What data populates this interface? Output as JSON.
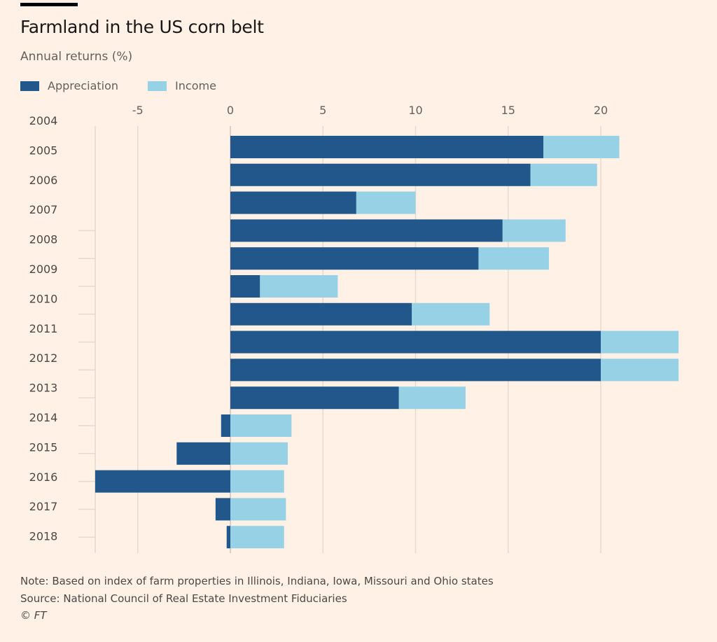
{
  "chart_data": {
    "type": "bar",
    "orientation": "horizontal",
    "stacked": true,
    "title": "Farmland in the US corn belt",
    "subtitle": "Annual returns (%)",
    "categories": [
      "2004",
      "2005",
      "2006",
      "2007",
      "2008",
      "2009",
      "2010",
      "2011",
      "2012",
      "2013",
      "2014",
      "2015",
      "2016",
      "2017",
      "2018"
    ],
    "series": [
      {
        "name": "Appreciation",
        "color": "#21578a",
        "values": [
          16.9,
          16.2,
          6.8,
          14.7,
          13.4,
          1.6,
          9.8,
          20.0,
          20.0,
          9.1,
          -0.5,
          -2.9,
          -7.3,
          -0.8,
          -0.2
        ]
      },
      {
        "name": "Income",
        "color": "#96d1e6",
        "values": [
          4.1,
          3.6,
          3.2,
          3.4,
          3.8,
          4.2,
          4.2,
          4.2,
          4.2,
          3.6,
          3.3,
          3.1,
          2.9,
          3.0,
          2.9
        ]
      }
    ],
    "xticks": [
      "-5",
      "0",
      "5",
      "10",
      "15",
      "20"
    ],
    "xlim": [
      -7.5,
      24.5
    ],
    "grid": true,
    "legend": "top-left"
  },
  "footer": {
    "note": "Note: Based on index of farm properties in Illinois, Indiana, Iowa, Missouri and Ohio states",
    "source": "Source: National Council of Real Estate Investment Fiduciaries",
    "credit": "© FT"
  }
}
